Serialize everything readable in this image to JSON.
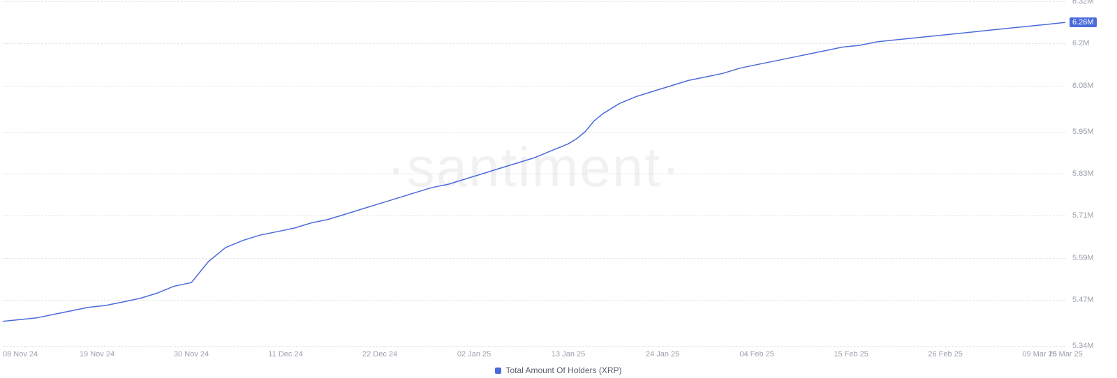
{
  "chart": {
    "type": "line",
    "watermark": "·santiment·",
    "background_color": "#ffffff",
    "grid_color": "#e2e4e9",
    "grid_dash": "4 4",
    "line_color": "#4a6bdb",
    "line_width": 1.5,
    "axis_label_color": "#9aa0ab",
    "axis_label_fontsize": 11,
    "legend_fontsize": 12,
    "y_axis": {
      "min": 5.34,
      "max": 6.32,
      "ticks": [
        5.34,
        5.47,
        5.59,
        5.71,
        5.83,
        5.95,
        6.08,
        6.2,
        6.32
      ],
      "tick_labels": [
        "5.34M",
        "5.47M",
        "5.59M",
        "5.71M",
        "5.83M",
        "5.95M",
        "6.08M",
        "6.2M",
        "6.32M"
      ],
      "marker_value": 6.26,
      "marker_label": "6.26M",
      "marker_bg": "#4a6bdb",
      "marker_color": "#ffffff"
    },
    "x_axis": {
      "min": 0,
      "max": 124,
      "ticks": [
        0,
        11,
        22,
        33,
        44,
        55,
        66,
        77,
        88,
        99,
        110,
        121,
        124
      ],
      "tick_labels": [
        "08 Nov 24",
        "19 Nov 24",
        "30 Nov 24",
        "11 Dec 24",
        "22 Dec 24",
        "02 Jan 25",
        "13 Jan 25",
        "24 Jan 25",
        "04 Feb 25",
        "15 Feb 25",
        "26 Feb 25",
        "09 Mar 25",
        "10 Mar 25"
      ]
    },
    "series": [
      {
        "name": "Total Amount Of Holders (XRP)",
        "color": "#4a6bdb",
        "points": [
          [
            0,
            5.41
          ],
          [
            2,
            5.415
          ],
          [
            4,
            5.42
          ],
          [
            6,
            5.43
          ],
          [
            8,
            5.44
          ],
          [
            10,
            5.45
          ],
          [
            12,
            5.455
          ],
          [
            14,
            5.465
          ],
          [
            16,
            5.475
          ],
          [
            18,
            5.49
          ],
          [
            19,
            5.5
          ],
          [
            20,
            5.51
          ],
          [
            21,
            5.515
          ],
          [
            22,
            5.52
          ],
          [
            23,
            5.55
          ],
          [
            24,
            5.58
          ],
          [
            25,
            5.6
          ],
          [
            26,
            5.62
          ],
          [
            28,
            5.64
          ],
          [
            30,
            5.655
          ],
          [
            32,
            5.665
          ],
          [
            34,
            5.675
          ],
          [
            36,
            5.69
          ],
          [
            38,
            5.7
          ],
          [
            40,
            5.715
          ],
          [
            42,
            5.73
          ],
          [
            44,
            5.745
          ],
          [
            46,
            5.76
          ],
          [
            48,
            5.775
          ],
          [
            50,
            5.79
          ],
          [
            52,
            5.8
          ],
          [
            54,
            5.815
          ],
          [
            56,
            5.83
          ],
          [
            58,
            5.845
          ],
          [
            60,
            5.86
          ],
          [
            62,
            5.875
          ],
          [
            63,
            5.885
          ],
          [
            64,
            5.895
          ],
          [
            65,
            5.905
          ],
          [
            66,
            5.915
          ],
          [
            67,
            5.93
          ],
          [
            68,
            5.95
          ],
          [
            69,
            5.98
          ],
          [
            70,
            6.0
          ],
          [
            71,
            6.015
          ],
          [
            72,
            6.03
          ],
          [
            74,
            6.05
          ],
          [
            76,
            6.065
          ],
          [
            78,
            6.08
          ],
          [
            80,
            6.095
          ],
          [
            82,
            6.105
          ],
          [
            84,
            6.115
          ],
          [
            86,
            6.13
          ],
          [
            88,
            6.14
          ],
          [
            90,
            6.15
          ],
          [
            92,
            6.16
          ],
          [
            94,
            6.17
          ],
          [
            96,
            6.18
          ],
          [
            98,
            6.19
          ],
          [
            100,
            6.195
          ],
          [
            102,
            6.205
          ],
          [
            104,
            6.21
          ],
          [
            106,
            6.215
          ],
          [
            108,
            6.22
          ],
          [
            110,
            6.225
          ],
          [
            112,
            6.23
          ],
          [
            114,
            6.235
          ],
          [
            116,
            6.24
          ],
          [
            118,
            6.245
          ],
          [
            120,
            6.25
          ],
          [
            122,
            6.255
          ],
          [
            124,
            6.26
          ]
        ]
      }
    ]
  },
  "legend": {
    "label": "Total Amount Of Holders (XRP)",
    "swatch_color": "#4a6bdb"
  }
}
